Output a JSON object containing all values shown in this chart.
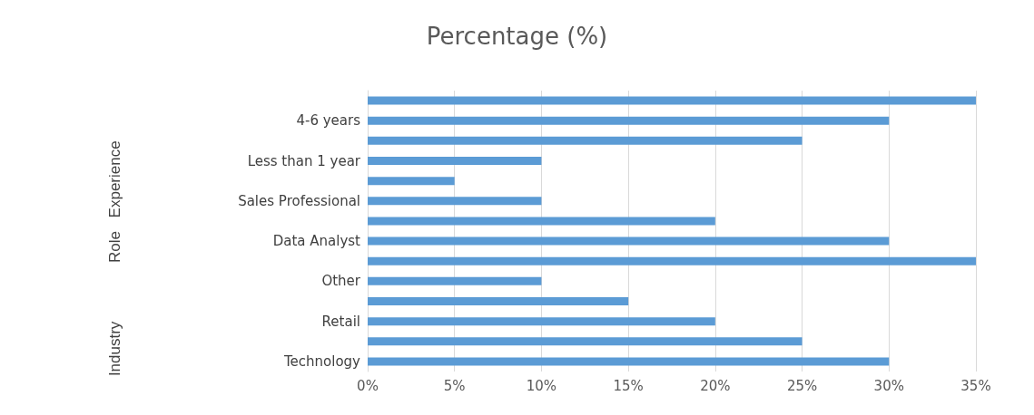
{
  "chart_data": {
    "type": "bar",
    "orientation": "horizontal",
    "title": "Percentage (%)",
    "categories": [
      null,
      "4-6 years",
      null,
      "Less than 1 year",
      null,
      "Sales Professional",
      null,
      "Data Analyst",
      null,
      "Other",
      null,
      "Retail",
      null,
      "Technology"
    ],
    "values": [
      35,
      30,
      25,
      10,
      5,
      10,
      20,
      30,
      35,
      10,
      15,
      20,
      25,
      30
    ],
    "color": "#5b9bd5",
    "xlim": [
      0,
      35
    ],
    "xticks": [
      {
        "value": 0,
        "label": "0%"
      },
      {
        "value": 5,
        "label": "5%"
      },
      {
        "value": 10,
        "label": "10%"
      },
      {
        "value": 15,
        "label": "15%"
      },
      {
        "value": 20,
        "label": "20%"
      },
      {
        "value": 25,
        "label": "25%"
      },
      {
        "value": 30,
        "label": "30%"
      },
      {
        "value": 35,
        "label": "35%"
      }
    ],
    "grid": "x",
    "annotations": [
      "Experience",
      "Role",
      "Industry"
    ]
  }
}
